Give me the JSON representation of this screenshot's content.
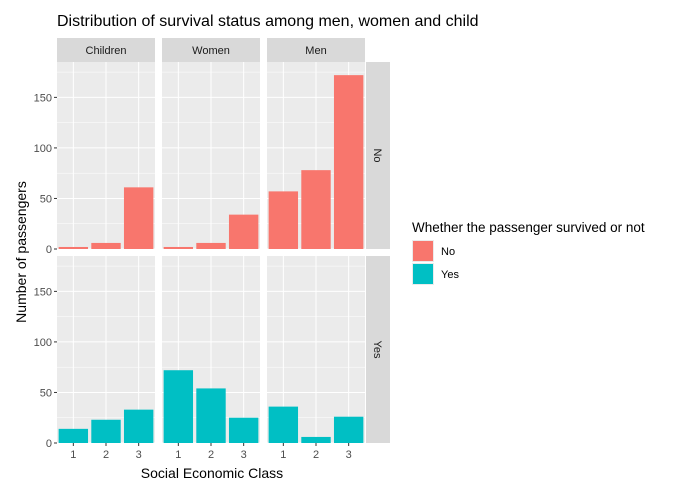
{
  "chart_data": {
    "type": "bar",
    "title": "Distribution of survival status among men, women and child",
    "xlabel": "Social Economic Class",
    "ylabel": "Number of passengers",
    "categories": [
      "1",
      "2",
      "3"
    ],
    "ylim": [
      0,
      185
    ],
    "yticks": [
      "0",
      "50",
      "100",
      "150"
    ],
    "col_facets": [
      "Children",
      "Women",
      "Men"
    ],
    "row_facets": [
      "No",
      "Yes"
    ],
    "legend_title": "Whether the passenger survived or not",
    "legend_position": "right",
    "grid": true,
    "colors": {
      "No": "#F8766D",
      "Yes": "#00BFC4",
      "panel_bg": "#EBEBEB",
      "strip_bg": "#D9D9D9"
    },
    "series": [
      {
        "name": "No",
        "values": {
          "Children": [
            2,
            6,
            61
          ],
          "Women": [
            2,
            6,
            34
          ],
          "Men": [
            57,
            78,
            172
          ]
        }
      },
      {
        "name": "Yes",
        "values": {
          "Children": [
            14,
            23,
            33
          ],
          "Women": [
            72,
            54,
            25
          ],
          "Men": [
            36,
            6,
            26
          ]
        }
      }
    ]
  }
}
